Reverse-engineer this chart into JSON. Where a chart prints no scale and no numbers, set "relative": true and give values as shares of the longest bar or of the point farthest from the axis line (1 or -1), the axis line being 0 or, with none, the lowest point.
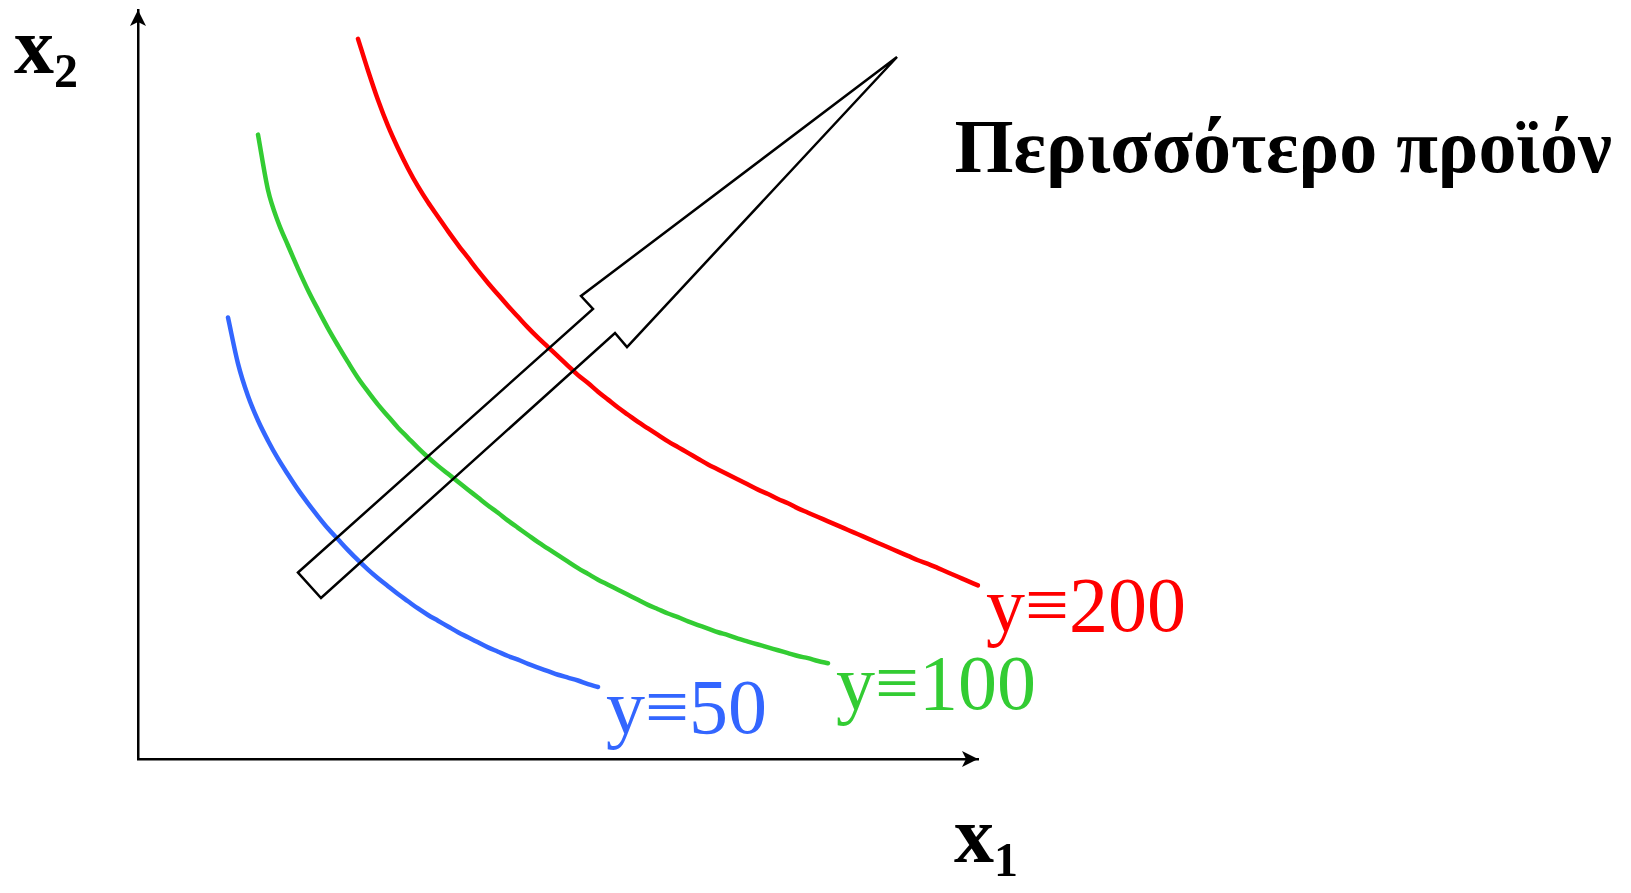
{
  "chart_data": {
    "type": "line",
    "relative": true,
    "marker": "none",
    "line_style": "solid",
    "xlabel": "x$_{1}$",
    "ylabel": "x$_{2}$",
    "annotations": [
      "Περισσότερο προϊόν"
    ],
    "categories": [
      null,
      null,
      null,
      null,
      null,
      null,
      null,
      null,
      null,
      null,
      null,
      null,
      null,
      null,
      null,
      null,
      null,
      null,
      null,
      null,
      null,
      null,
      null,
      null,
      null,
      null,
      null,
      null,
      null,
      null,
      null,
      null,
      null,
      null,
      null,
      null,
      null,
      null,
      null,
      null,
      null,
      null,
      null,
      null,
      null,
      null,
      null,
      null,
      null,
      null,
      null,
      null,
      null,
      null,
      null,
      null,
      null,
      null,
      null,
      null,
      null,
      null,
      null,
      null,
      null,
      null,
      null,
      null,
      null,
      null,
      null,
      null,
      null,
      null,
      null,
      null,
      null,
      null,
      null,
      null,
      null,
      null,
      null,
      null,
      null
    ],
    "series": [
      {
        "name": "y≡50",
        "color": "#3366ff",
        "values": [
          null,
          null,
          null,
          null,
          null,
          null,
          null,
          null,
          null,
          0.613,
          0.549,
          0.504,
          0.47,
          0.442,
          0.417,
          0.395,
          0.374,
          0.355,
          0.337,
          0.32,
          0.305,
          0.29,
          0.276,
          0.263,
          0.251,
          0.24,
          0.229,
          0.219,
          0.209,
          0.2,
          0.192,
          0.184,
          0.176,
          0.169,
          0.162,
          0.155,
          0.149,
          0.143,
          0.138,
          0.132,
          0.127,
          0.122,
          0.117,
          0.113,
          0.109,
          0.104,
          0.1,
          null,
          null,
          null,
          null,
          null,
          null,
          null,
          null,
          null,
          null,
          null,
          null,
          null,
          null,
          null,
          null,
          null,
          null,
          null,
          null,
          null,
          null,
          null,
          null,
          null,
          null,
          null,
          null,
          null,
          null,
          null,
          null,
          null,
          null,
          null,
          null,
          null,
          null
        ]
      },
      {
        "name": "y≡100",
        "color": "#33cc33",
        "values": [
          null,
          null,
          null,
          null,
          null,
          null,
          null,
          null,
          null,
          null,
          null,
          null,
          0.867,
          0.79,
          0.746,
          0.713,
          0.681,
          0.651,
          0.624,
          0.598,
          0.574,
          0.551,
          0.529,
          0.51,
          0.492,
          0.476,
          0.46,
          0.446,
          0.432,
          0.419,
          0.407,
          0.396,
          0.385,
          0.374,
          0.363,
          0.352,
          0.342,
          0.331,
          0.321,
          0.311,
          0.301,
          0.292,
          0.283,
          0.274,
          0.265,
          0.257,
          0.249,
          0.242,
          0.235,
          0.228,
          0.221,
          0.214,
          0.208,
          0.202,
          0.197,
          0.191,
          0.186,
          0.181,
          0.176,
          0.172,
          0.167,
          0.163,
          0.159,
          0.155,
          0.151,
          0.147,
          0.143,
          0.14,
          0.136,
          0.133,
          null,
          null,
          null,
          null,
          null,
          null,
          null,
          null,
          null,
          null,
          null,
          null,
          null,
          null,
          null
        ]
      },
      {
        "name": "y≡200",
        "color": "#ff0000",
        "values": [
          null,
          null,
          null,
          null,
          null,
          null,
          null,
          null,
          null,
          null,
          null,
          null,
          null,
          null,
          null,
          null,
          null,
          null,
          null,
          null,
          null,
          null,
          1,
          0.956,
          0.915,
          0.879,
          0.848,
          0.82,
          0.795,
          0.773,
          0.753,
          0.733,
          0.714,
          0.696,
          0.678,
          0.661,
          0.645,
          0.629,
          0.614,
          0.599,
          0.585,
          0.572,
          0.559,
          0.546,
          0.533,
          0.522,
          0.51,
          0.499,
          0.488,
          0.478,
          0.468,
          0.459,
          0.45,
          0.441,
          0.433,
          0.425,
          0.417,
          0.409,
          0.402,
          0.395,
          0.388,
          0.381,
          0.374,
          0.368,
          0.361,
          0.355,
          0.348,
          0.342,
          0.336,
          0.33,
          0.324,
          0.318,
          0.312,
          0.306,
          0.3,
          0.294,
          0.288,
          0.282,
          0.276,
          0.271,
          0.265,
          0.259,
          0.253,
          0.247,
          0.241
        ]
      }
    ]
  }
}
